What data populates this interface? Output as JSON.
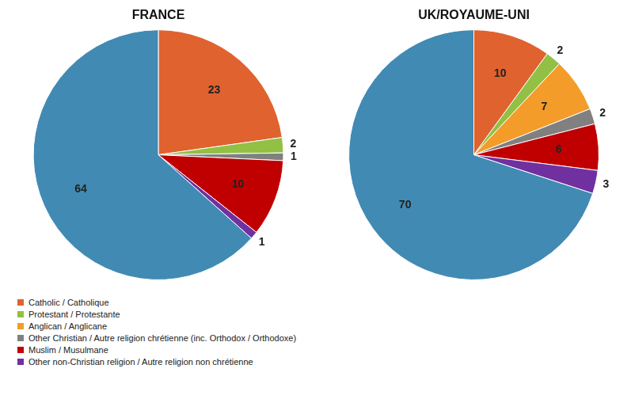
{
  "chart_data": [
    {
      "type": "pie",
      "title": "FRANCE",
      "categories": [
        "Catholic / Catholique",
        "Protestant / Protestante",
        "Other Christian / Autre religion chrétienne (inc. Orthodox / Orthodoxe)",
        "Muslim / Musulmane",
        "Other non-Christian religion / Autre religion non chrétienne",
        null
      ],
      "values": [
        23,
        2,
        1,
        10,
        1,
        64
      ],
      "colors": [
        "#e0622f",
        "#92c044",
        "#808080",
        "#c00000",
        "#7030a0",
        "#418ab3"
      ],
      "data_labels": true,
      "legend": "bottom"
    },
    {
      "type": "pie",
      "title": "UK/ROYAUME-UNI",
      "categories": [
        "Catholic / Catholique",
        "Protestant / Protestante",
        "Anglican / Anglicane",
        "Other Christian / Autre religion chrétienne (inc. Orthodox / Orthodoxe)",
        "Muslim / Musulmane",
        "Other non-Christian religion / Autre religion non chrétienne",
        null
      ],
      "values": [
        10,
        2,
        7,
        2,
        6,
        3,
        70
      ],
      "colors": [
        "#e0622f",
        "#92c044",
        "#f39c2a",
        "#808080",
        "#c00000",
        "#7030a0",
        "#418ab3"
      ],
      "data_labels": true,
      "legend": "bottom"
    }
  ]
}
